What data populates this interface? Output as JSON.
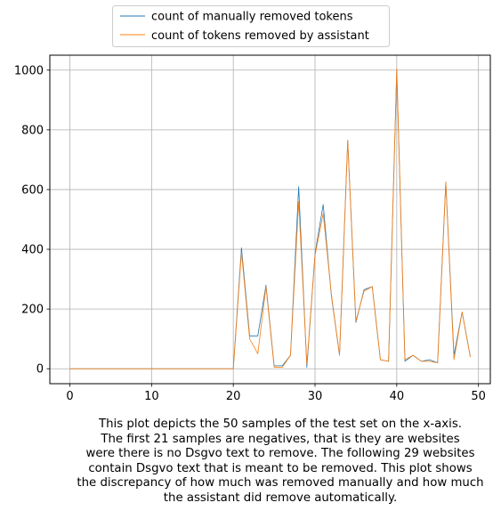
{
  "chart_data": {
    "type": "line",
    "title": "",
    "xlabel": "",
    "ylabel": "",
    "xlim": [
      -2.45,
      51.45
    ],
    "ylim": [
      -50,
      1050
    ],
    "xticks": [
      0,
      10,
      20,
      30,
      40,
      50
    ],
    "yticks": [
      0,
      200,
      400,
      600,
      800,
      1000
    ],
    "grid": true,
    "legend_position": "top-center, above plot",
    "x": [
      0,
      1,
      2,
      3,
      4,
      5,
      6,
      7,
      8,
      9,
      10,
      11,
      12,
      13,
      14,
      15,
      16,
      17,
      18,
      19,
      20,
      21,
      22,
      23,
      24,
      25,
      26,
      27,
      28,
      29,
      30,
      31,
      32,
      33,
      34,
      35,
      36,
      37,
      38,
      39,
      40,
      41,
      42,
      43,
      44,
      45,
      46,
      47,
      48,
      49
    ],
    "series": [
      {
        "name": "count of manually removed tokens",
        "color": "#1f77b4",
        "values": [
          0,
          0,
          0,
          0,
          0,
          0,
          0,
          0,
          0,
          0,
          0,
          0,
          0,
          0,
          0,
          0,
          0,
          0,
          0,
          0,
          0,
          405,
          110,
          110,
          280,
          10,
          10,
          45,
          610,
          5,
          385,
          550,
          245,
          45,
          765,
          155,
          265,
          275,
          30,
          25,
          1000,
          25,
          45,
          25,
          30,
          20,
          625,
          45,
          190,
          40
        ]
      },
      {
        "name": "count of tokens removed by assistant",
        "color": "#ff7f0e",
        "values": [
          0,
          0,
          0,
          0,
          0,
          0,
          0,
          0,
          0,
          0,
          0,
          0,
          0,
          0,
          0,
          0,
          0,
          0,
          0,
          0,
          0,
          390,
          100,
          50,
          275,
          5,
          5,
          45,
          560,
          15,
          380,
          520,
          250,
          45,
          765,
          160,
          260,
          275,
          30,
          25,
          1005,
          30,
          45,
          25,
          25,
          20,
          625,
          30,
          190,
          40
        ]
      }
    ]
  },
  "caption": {
    "lines": [
      "This plot depicts the 50 samples of the test set on the x-axis.",
      "The first 21 samples are negatives, that is they are websites",
      "were there is no Dsgvo text to remove. The following 29 websites",
      "contain Dsgvo text that is meant to be removed. This plot shows",
      "the discrepancy of how much was removed manually and how much",
      "the assistant did remove automatically."
    ]
  }
}
